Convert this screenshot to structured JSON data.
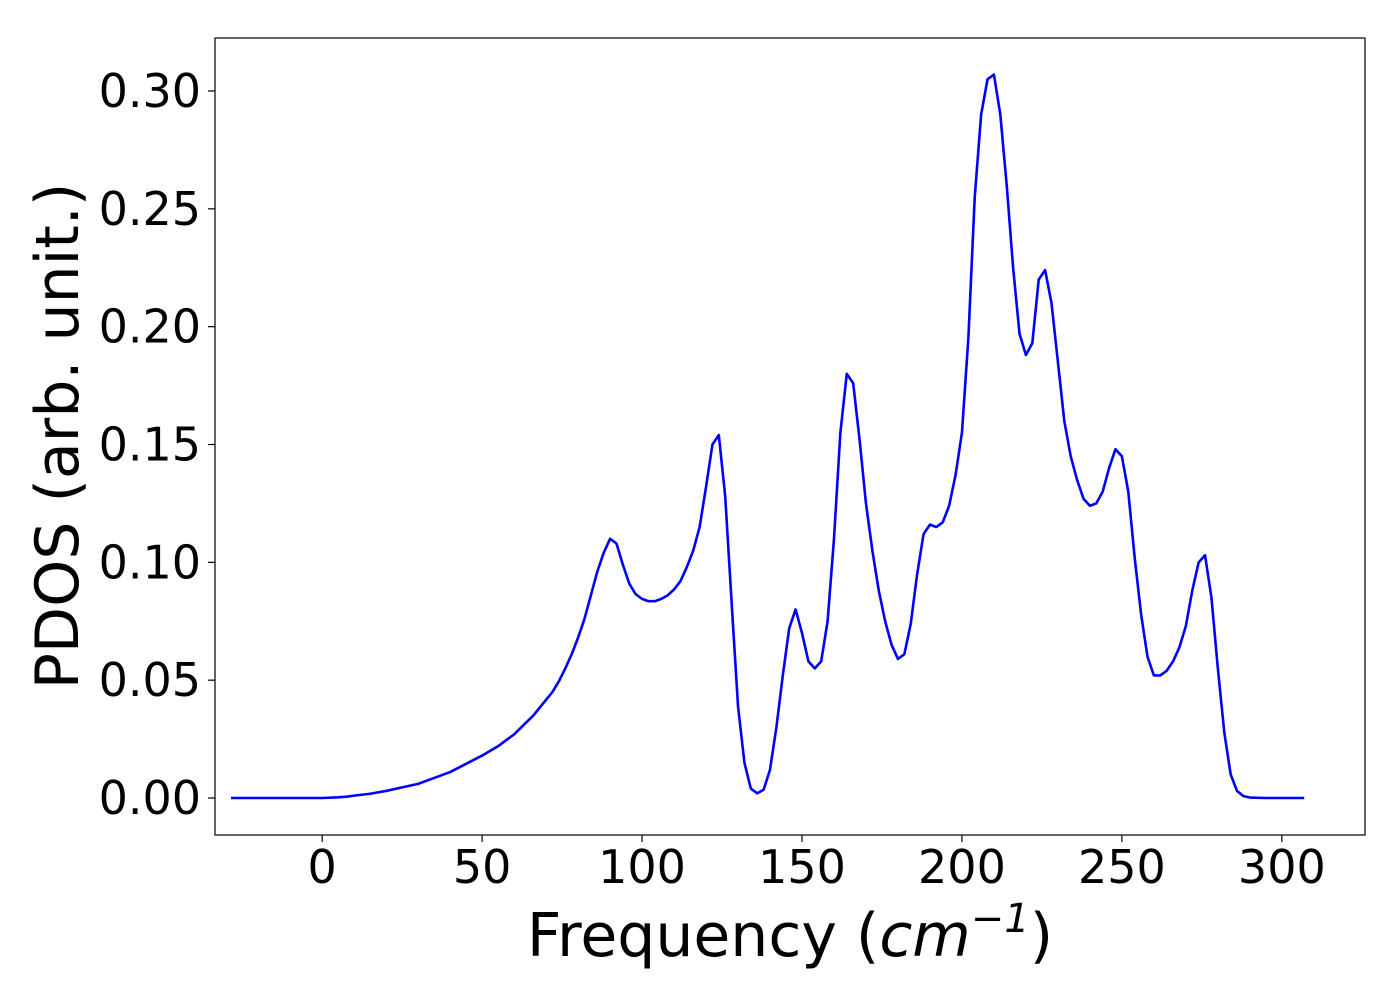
{
  "chart_data": {
    "type": "line",
    "title": "",
    "xlabel_prefix": "Frequency (",
    "xlabel_unit_base": "cm",
    "xlabel_unit_exponent": "−1",
    "xlabel_suffix": ")",
    "ylabel": "PDOS (arb. unit.)",
    "xlim": [
      -33.5,
      326
    ],
    "ylim": [
      -0.0157,
      0.3225
    ],
    "xticks": [
      0,
      50,
      100,
      150,
      200,
      250,
      300
    ],
    "xtick_labels": [
      "0",
      "50",
      "100",
      "150",
      "200",
      "250",
      "300"
    ],
    "yticks": [
      0.0,
      0.05,
      0.1,
      0.15,
      0.2,
      0.25,
      0.3
    ],
    "ytick_labels": [
      "0.00",
      "0.05",
      "0.10",
      "0.15",
      "0.20",
      "0.25",
      "0.30"
    ],
    "grid": false,
    "legend": false,
    "series": [
      {
        "color": "#0000ff",
        "x": [
          -28.5,
          -20,
          -10,
          0,
          5,
          8,
          10,
          15,
          20,
          25,
          30,
          33,
          36,
          40,
          45,
          50,
          55,
          60,
          63,
          66,
          69,
          72,
          74,
          76,
          78,
          80,
          82,
          84,
          86,
          88,
          90,
          92,
          94,
          96,
          98,
          100,
          102,
          104,
          106,
          108,
          110,
          112,
          114,
          116,
          118,
          120,
          122,
          124,
          126,
          128,
          130,
          132,
          134,
          136,
          138,
          140,
          142,
          144,
          146,
          148,
          150,
          152,
          154,
          156,
          158,
          160,
          162,
          164,
          166,
          168,
          170,
          172,
          174,
          176,
          178,
          180,
          182,
          184,
          186,
          188,
          190,
          192,
          194,
          196,
          198,
          200,
          202,
          204,
          206,
          208,
          210,
          212,
          214,
          216,
          218,
          220,
          222,
          224,
          226,
          228,
          230,
          232,
          234,
          236,
          238,
          240,
          242,
          244,
          246,
          248,
          250,
          252,
          254,
          256,
          258,
          260,
          262,
          264,
          266,
          268,
          270,
          272,
          274,
          276,
          278,
          280,
          282,
          284,
          286,
          288,
          290,
          295,
          300,
          307
        ],
        "y": [
          0.0,
          0.0,
          0.0,
          0.0,
          0.0003,
          0.0006,
          0.001,
          0.0018,
          0.003,
          0.0045,
          0.006,
          0.0075,
          0.009,
          0.011,
          0.0145,
          0.018,
          0.022,
          0.027,
          0.031,
          0.035,
          0.04,
          0.045,
          0.0495,
          0.055,
          0.061,
          0.068,
          0.076,
          0.086,
          0.096,
          0.104,
          0.11,
          0.108,
          0.099,
          0.091,
          0.0865,
          0.0845,
          0.0835,
          0.0835,
          0.0845,
          0.086,
          0.0885,
          0.092,
          0.098,
          0.105,
          0.115,
          0.132,
          0.15,
          0.154,
          0.128,
          0.083,
          0.039,
          0.015,
          0.004,
          0.002,
          0.0035,
          0.012,
          0.03,
          0.052,
          0.072,
          0.08,
          0.07,
          0.058,
          0.055,
          0.058,
          0.075,
          0.11,
          0.155,
          0.18,
          0.176,
          0.152,
          0.125,
          0.105,
          0.088,
          0.075,
          0.065,
          0.059,
          0.061,
          0.074,
          0.095,
          0.112,
          0.116,
          0.115,
          0.117,
          0.124,
          0.137,
          0.155,
          0.195,
          0.255,
          0.29,
          0.305,
          0.307,
          0.29,
          0.26,
          0.225,
          0.197,
          0.188,
          0.193,
          0.22,
          0.224,
          0.21,
          0.185,
          0.16,
          0.145,
          0.135,
          0.127,
          0.124,
          0.125,
          0.13,
          0.14,
          0.148,
          0.145,
          0.13,
          0.102,
          0.078,
          0.06,
          0.052,
          0.052,
          0.054,
          0.058,
          0.064,
          0.073,
          0.088,
          0.1,
          0.103,
          0.085,
          0.055,
          0.028,
          0.01,
          0.003,
          0.0008,
          0.0002,
          0.0,
          0.0,
          0.0
        ]
      }
    ]
  }
}
